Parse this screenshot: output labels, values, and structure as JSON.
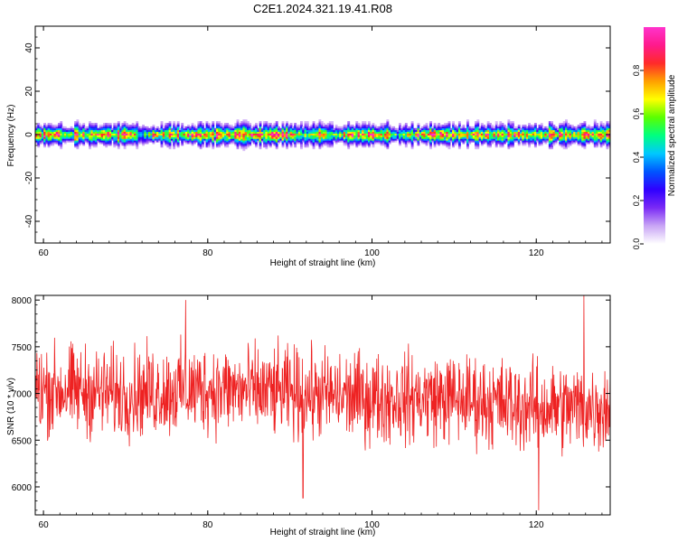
{
  "title": "C2E1.2024.321.19.41.R08",
  "chart_data": [
    {
      "type": "heatmap",
      "xlabel": "Height of straight line (km)",
      "ylabel": "Frequency (Hz)",
      "xlim": [
        59,
        129
      ],
      "ylim": [
        -50,
        50
      ],
      "xticks": [
        60,
        80,
        100,
        120
      ],
      "yticks": [
        -40,
        -20,
        0,
        20,
        40
      ],
      "description_values": {
        "band_center_hz": 0,
        "band_halfwidth_hz": 4,
        "gap_heights_km": [
          72,
          91.5,
          95,
          103
        ]
      },
      "colorbar": {
        "label": "Normalized spectral amplitude",
        "range": [
          0,
          1
        ],
        "ticks": [
          0.0,
          0.2,
          0.4,
          0.6,
          0.8
        ],
        "tick_labels": [
          "0.0",
          "0.2",
          "0.4",
          "0.6",
          "0.8"
        ],
        "colormap": [
          "#ffffff",
          "#c9a5f5",
          "#7a2af5",
          "#2f00ff",
          "#0055ff",
          "#00c8ff",
          "#00ff80",
          "#5aff00",
          "#ffff00",
          "#ffa000",
          "#ff2a2a",
          "#ff1a8c",
          "#ff33cc"
        ]
      },
      "grid": false
    },
    {
      "type": "line",
      "xlabel": "Height of straight line (km)",
      "ylabel": "SNR (10 * v/v)",
      "xlim": [
        59,
        129
      ],
      "ylim": [
        5700,
        8050
      ],
      "xticks": [
        60,
        80,
        100,
        120
      ],
      "yticks": [
        6000,
        6500,
        7000,
        7500,
        8000
      ],
      "series": [
        {
          "color": "#ee2222",
          "x_start": 59,
          "x_end": 129,
          "n_points": 1400,
          "mean_profile_km": [
            59,
            70,
            80,
            90,
            100,
            110,
            120,
            129
          ],
          "mean_profile_snr": [
            7050,
            7000,
            7050,
            7000,
            6950,
            6950,
            6850,
            6850
          ],
          "typical_spread": 350,
          "peak_values": [
            {
              "x": 77.3,
              "y": 8000
            },
            {
              "x": 125.8,
              "y": 8050
            },
            {
              "x": 91.6,
              "y": 5880
            },
            {
              "x": 120.3,
              "y": 5750
            }
          ]
        }
      ],
      "grid": false
    }
  ]
}
